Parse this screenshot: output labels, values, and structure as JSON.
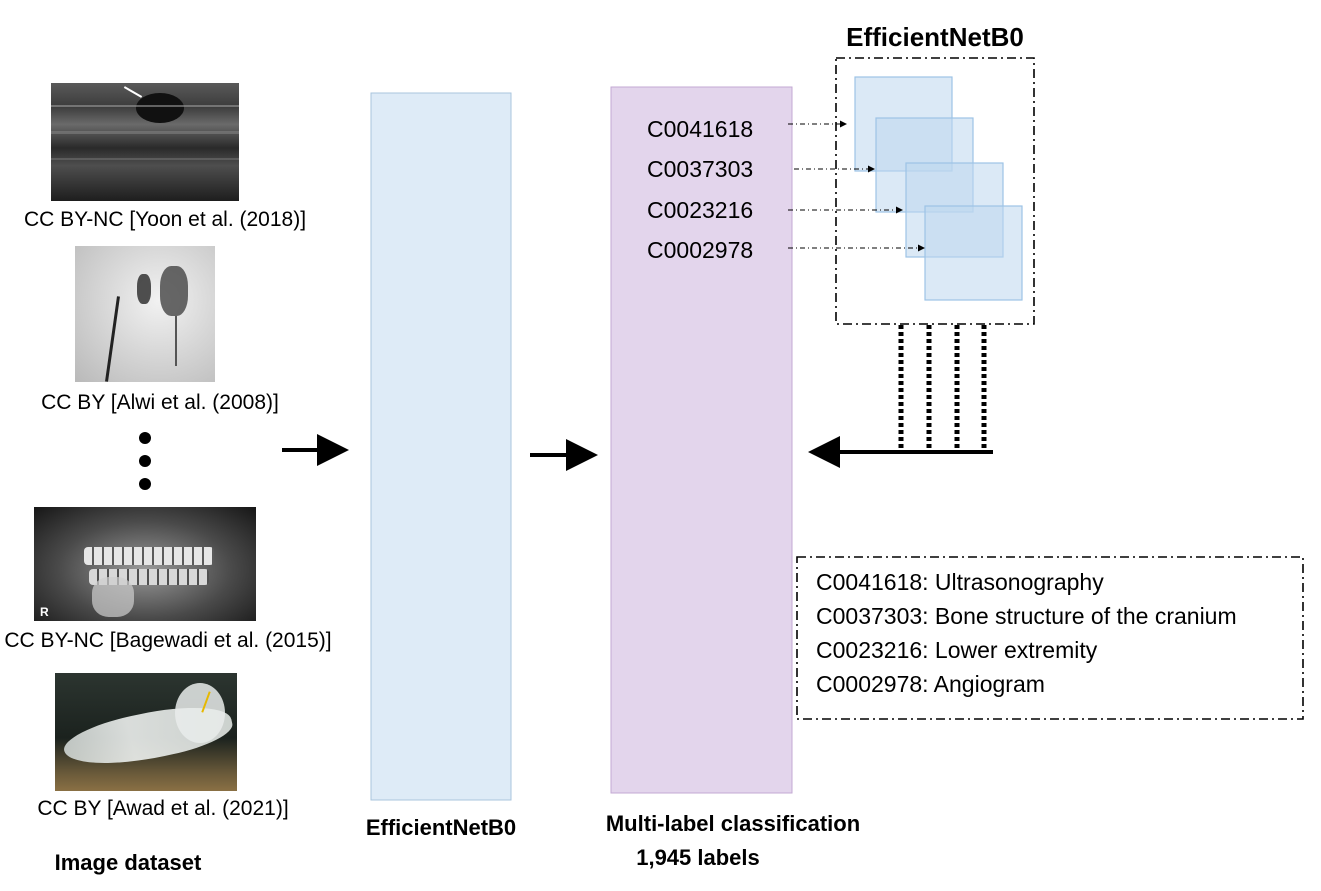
{
  "dataset": {
    "title": "Image dataset",
    "images": [
      {
        "kind": "ultrasound",
        "caption": "CC BY-NC [Yoon et al. (2018)]"
      },
      {
        "kind": "angiogram",
        "caption": "CC BY [Alwi et al. (2008)]"
      },
      {
        "kind": "panoramic-dental-xray",
        "caption": "CC BY-NC [Bagewadi et al. (2015)]"
      },
      {
        "kind": "foot-xray",
        "caption": "CC BY [Awad et al. (2021)]"
      }
    ]
  },
  "encoder": {
    "label": "EfficientNetB0",
    "color": "#deebf7"
  },
  "classifier": {
    "label_line1": "Multi-label classification",
    "label_line2": "1,945 labels",
    "color": "#e3d5ec",
    "codes": [
      "C0041618",
      "C0037303",
      "C0023216",
      "C0002978"
    ]
  },
  "ensemble": {
    "title": "EfficientNetB0",
    "color": "#bdd7ee"
  },
  "legend": {
    "entries": [
      "C0041618: Ultrasonography",
      "C0037303: Bone structure of the cranium",
      "C0023216: Lower extremity",
      "C0002978: Angiogram"
    ]
  }
}
